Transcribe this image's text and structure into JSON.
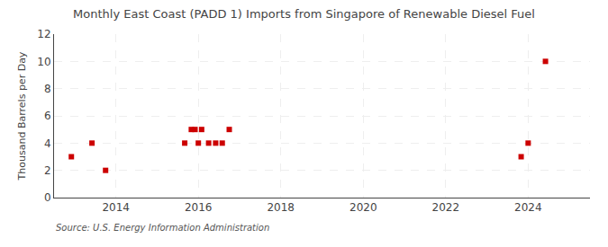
{
  "chart_data": {
    "type": "scatter",
    "title": "Monthly East Coast (PADD 1) Imports from Singapore of Renewable Diesel Fuel",
    "y_label": "Thousand Barrels per Day",
    "annotations": [
      "Source: U.S. Energy Information Administration"
    ],
    "x": [
      2012.92,
      2013.42,
      2013.75,
      2015.67,
      2015.83,
      2015.92,
      2016.0,
      2016.08,
      2016.25,
      2016.42,
      2016.58,
      2016.75,
      2023.83,
      2024.0,
      2024.42
    ],
    "values": [
      3,
      4,
      2,
      4,
      5,
      5,
      4,
      5,
      4,
      4,
      4,
      5,
      3,
      4,
      10
    ],
    "color": "#cc0000",
    "marker": "square",
    "xlim": [
      2012.5,
      2025.5
    ],
    "xticks": [
      2014,
      2016,
      2018,
      2020,
      2022,
      2024
    ],
    "ylim": [
      0,
      12
    ],
    "yticks": [
      0,
      2,
      4,
      6,
      8,
      10,
      12
    ],
    "grid": true
  }
}
